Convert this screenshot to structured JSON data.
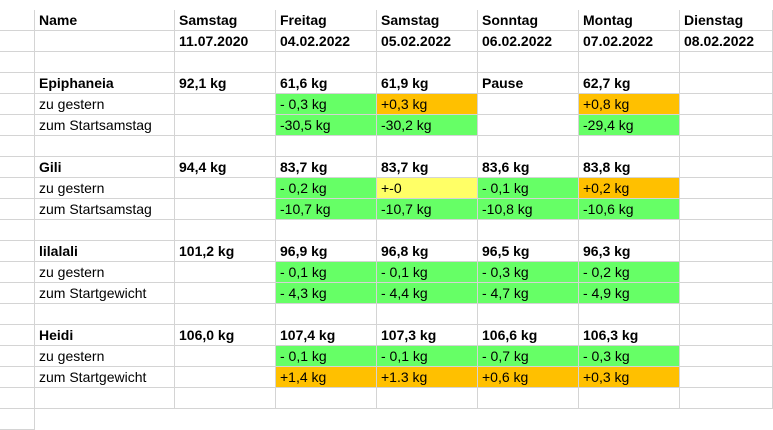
{
  "header": {
    "name_label": "Name",
    "columns": [
      {
        "day": "Samstag",
        "date": "11.07.2020"
      },
      {
        "day": "Freitag",
        "date": "04.02.2022"
      },
      {
        "day": "Samstag",
        "date": "05.02.2022"
      },
      {
        "day": "Sonntag",
        "date": "06.02.2022"
      },
      {
        "day": "Montag",
        "date": "07.02.2022"
      },
      {
        "day": "Dienstag",
        "date": "08.02.2022"
      }
    ]
  },
  "colors": {
    "green": "#66ff66",
    "orange": "#ffc000",
    "yellow": "#ffff66"
  },
  "people": [
    {
      "name": "Epiphaneia",
      "weights": [
        "92,1 kg",
        "61,6 kg",
        "61,9 kg",
        "Pause",
        "62,7 kg",
        ""
      ],
      "rows": [
        {
          "label": "zu gestern",
          "values": [
            "",
            "- 0,3 kg",
            "+0,3 kg",
            "",
            "+0,8 kg",
            ""
          ],
          "colors": [
            "",
            "green",
            "orange",
            "",
            "orange",
            ""
          ]
        },
        {
          "label": "zum Startsamstag",
          "values": [
            "",
            "-30,5 kg",
            "-30,2 kg",
            "",
            "-29,4 kg",
            ""
          ],
          "colors": [
            "",
            "green",
            "green",
            "",
            "green",
            ""
          ]
        }
      ]
    },
    {
      "name": "Gili",
      "weights": [
        "94,4 kg",
        "83,7 kg",
        "83,7 kg",
        "83,6 kg",
        "83,8 kg",
        ""
      ],
      "rows": [
        {
          "label": "zu gestern",
          "values": [
            "",
            "- 0,2 kg",
            "+-0",
            "- 0,1 kg",
            "+0,2 kg",
            ""
          ],
          "colors": [
            "",
            "green",
            "yellow",
            "green",
            "orange",
            ""
          ]
        },
        {
          "label": "zum Startsamstag",
          "values": [
            "",
            "-10,7 kg",
            "-10,7 kg",
            "-10,8 kg",
            "-10,6 kg",
            ""
          ],
          "colors": [
            "",
            "green",
            "green",
            "green",
            "green",
            ""
          ]
        }
      ]
    },
    {
      "name": "lilalali",
      "weights": [
        "101,2 kg",
        "96,9 kg",
        "96,8 kg",
        "96,5 kg",
        "96,3 kg",
        ""
      ],
      "rows": [
        {
          "label": "zu gestern",
          "values": [
            "",
            "- 0,1 kg",
            "- 0,1 kg",
            "- 0,3 kg",
            "- 0,2 kg",
            ""
          ],
          "colors": [
            "",
            "green",
            "green",
            "green",
            "green",
            ""
          ]
        },
        {
          "label": "zum Startgewicht",
          "values": [
            "",
            "- 4,3 kg",
            "- 4,4 kg",
            "- 4,7 kg",
            "- 4,9 kg",
            ""
          ],
          "colors": [
            "",
            "green",
            "green",
            "green",
            "green",
            ""
          ]
        }
      ]
    },
    {
      "name": "Heidi",
      "weights": [
        "106,0 kg",
        "107,4 kg",
        "107,3 kg",
        "106,6 kg",
        "106,3 kg",
        ""
      ],
      "rows": [
        {
          "label": "zu gestern",
          "values": [
            "",
            "- 0,1 kg",
            "- 0,1 kg",
            "- 0,7 kg",
            "- 0,3 kg",
            ""
          ],
          "colors": [
            "",
            "green",
            "green",
            "green",
            "green",
            ""
          ]
        },
        {
          "label": "zum Startgewicht",
          "values": [
            "",
            "+1,4 kg",
            "+1.3 kg",
            "+0,6 kg",
            "+0,3 kg",
            ""
          ],
          "colors": [
            "",
            "orange",
            "orange",
            "orange",
            "orange",
            ""
          ]
        }
      ]
    }
  ]
}
